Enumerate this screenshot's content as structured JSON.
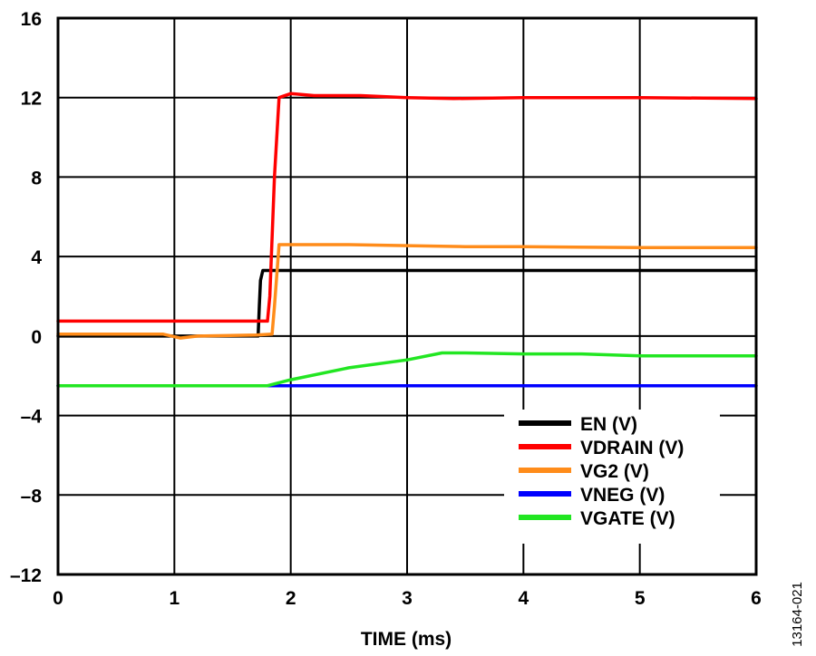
{
  "chart_data": {
    "type": "line",
    "xlabel": "TIME (ms)",
    "ylabel": "",
    "xlim": [
      0,
      6
    ],
    "ylim": [
      -12,
      16
    ],
    "x_ticks": [
      "0",
      "1",
      "2",
      "3",
      "4",
      "5",
      "6"
    ],
    "y_ticks": [
      "16",
      "12",
      "8",
      "4",
      "0",
      "–4",
      "–8",
      "–12"
    ],
    "grid": true,
    "legend_position": "bottom-right",
    "series": [
      {
        "name": "EN (V)",
        "color": "#000000",
        "x": [
          0,
          1.72,
          1.73,
          1.74,
          1.76,
          6
        ],
        "y": [
          0,
          0,
          1.5,
          2.8,
          3.3,
          3.3
        ]
      },
      {
        "name": "VDRAIN (V)",
        "color": "#ff0000",
        "x": [
          0,
          1.8,
          1.82,
          1.86,
          1.9,
          2.0,
          2.2,
          2.6,
          3.0,
          3.4,
          4.0,
          5.0,
          6.0
        ],
        "y": [
          0.75,
          0.75,
          2.0,
          8.0,
          12.0,
          12.2,
          12.1,
          12.1,
          12.0,
          11.95,
          12.0,
          12.0,
          11.95
        ]
      },
      {
        "name": "VG2 (V)",
        "color": "#ff8c1a",
        "x": [
          0,
          0.9,
          1.05,
          1.2,
          1.7,
          1.84,
          1.86,
          1.9,
          2.0,
          2.5,
          3.0,
          3.5,
          4.0,
          5.0,
          6.0
        ],
        "y": [
          0.1,
          0.1,
          -0.1,
          0.0,
          0.05,
          0.1,
          1.5,
          4.6,
          4.6,
          4.6,
          4.55,
          4.5,
          4.5,
          4.45,
          4.45
        ]
      },
      {
        "name": "VNEG (V)",
        "color": "#0000ff",
        "x": [
          0,
          6
        ],
        "y": [
          -2.5,
          -2.5
        ]
      },
      {
        "name": "VGATE (V)",
        "color": "#22e622",
        "x": [
          0,
          1.8,
          2.0,
          2.5,
          3.0,
          3.3,
          3.5,
          4.0,
          4.5,
          5.0,
          5.5,
          6.0
        ],
        "y": [
          -2.5,
          -2.5,
          -2.2,
          -1.6,
          -1.2,
          -0.85,
          -0.85,
          -0.9,
          -0.9,
          -1.0,
          -1.0,
          -1.0
        ]
      }
    ]
  },
  "figure_id": "13164-021"
}
